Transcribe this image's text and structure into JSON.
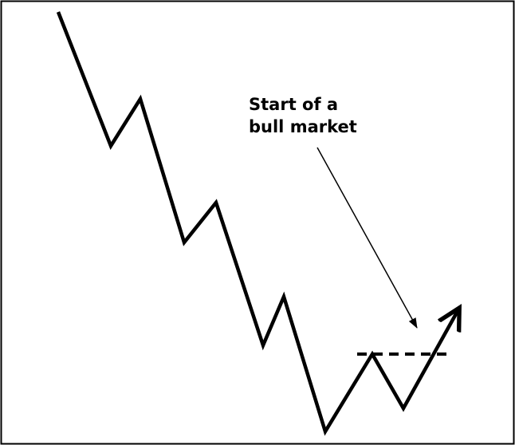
{
  "annotation": {
    "lines": [
      "Start of a",
      "bull market"
    ]
  }
}
